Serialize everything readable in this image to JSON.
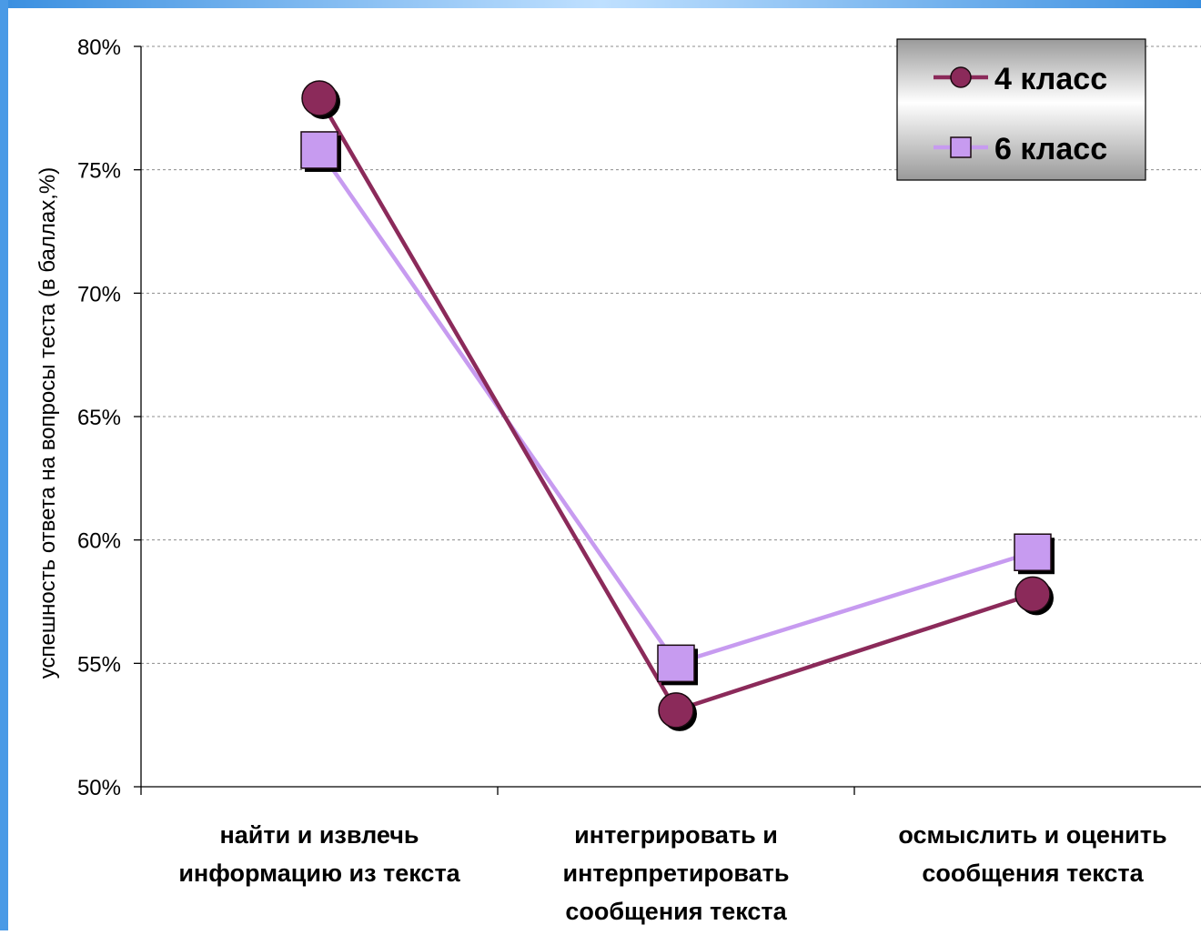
{
  "chart_data": {
    "type": "line",
    "title": "",
    "ylabel": "успешность ответа на вопросы теста (в баллах,%)",
    "xlabel": "",
    "ylim": [
      50,
      80
    ],
    "yticks": [
      50,
      55,
      60,
      65,
      70,
      75,
      80
    ],
    "ytick_labels": [
      "50%",
      "55%",
      "60%",
      "65%",
      "70%",
      "75%",
      "80%"
    ],
    "grid": true,
    "legend_position": "top-right",
    "categories": [
      [
        "найти и извлечь",
        "информацию из текста"
      ],
      [
        "интегрировать и",
        "интерпретировать",
        "сообщения текста"
      ],
      [
        "осмыслить и оценить",
        "сообщения текста"
      ]
    ],
    "series": [
      {
        "name": "4 класс",
        "values": [
          77.9,
          53.1,
          57.8
        ],
        "color": "#8B2A5A",
        "marker": "circle"
      },
      {
        "name": "6 класс",
        "values": [
          75.8,
          55.0,
          59.5
        ],
        "color": "#C79BF0",
        "marker": "square"
      }
    ]
  }
}
